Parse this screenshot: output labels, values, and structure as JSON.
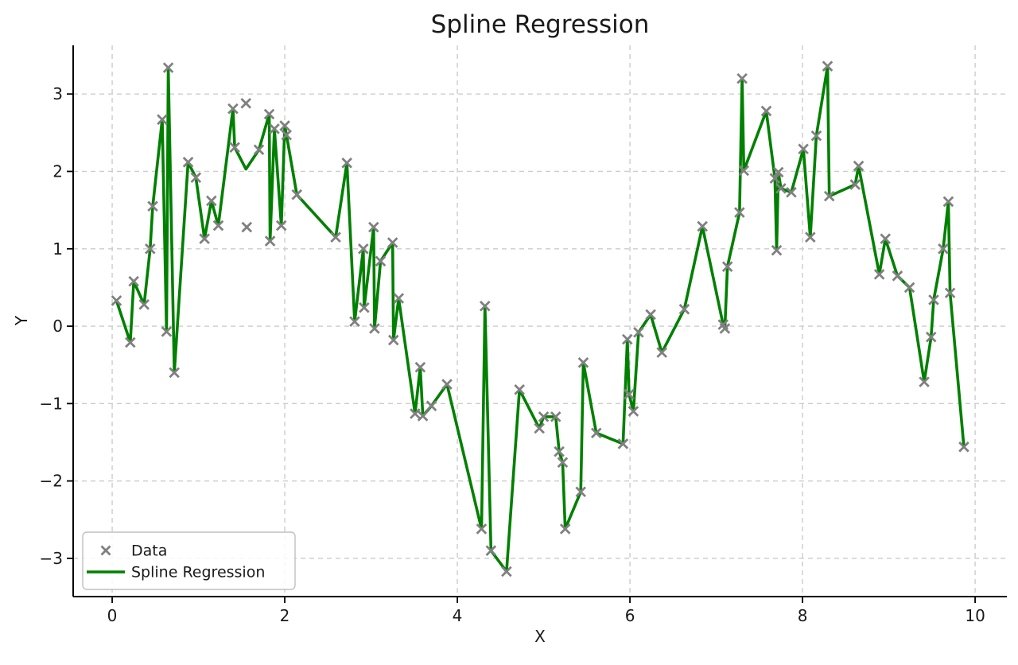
{
  "title": "Spline Regression",
  "axes": {
    "xlabel": "X",
    "ylabel": "Y",
    "x_ticks": [
      0,
      2,
      4,
      6,
      8,
      10
    ],
    "y_ticks": [
      -3,
      -2,
      -1,
      0,
      1,
      2,
      3
    ],
    "xlim": [
      -0.452,
      10.368
    ],
    "ylim": [
      -3.494,
      3.629
    ],
    "grid": true
  },
  "legend": {
    "position": "lower-left",
    "entries": [
      {
        "label": "Data",
        "type": "marker"
      },
      {
        "label": "Spline Regression",
        "type": "line"
      }
    ]
  },
  "colors": {
    "line": "#008000",
    "marker": "#808080",
    "grid": "#cccccc",
    "text": "#1a1a1a",
    "spine": "#000000",
    "legend_border": "#c0c0c0"
  },
  "chart_data": {
    "type": "scatter",
    "title": "Spline Regression",
    "xlabel": "X",
    "ylabel": "Y",
    "xlim": [
      -0.452,
      10.368
    ],
    "ylim": [
      -3.494,
      3.629
    ],
    "grid": true,
    "legend_position": "lower left",
    "series": [
      {
        "name": "Data",
        "type": "scatter",
        "marker": "x",
        "color": "#808080",
        "points": [
          [
            0.05,
            0.33
          ],
          [
            0.21,
            -0.21
          ],
          [
            0.25,
            0.58
          ],
          [
            0.37,
            0.28
          ],
          [
            0.44,
            1.0
          ],
          [
            0.47,
            1.55
          ],
          [
            0.58,
            2.67
          ],
          [
            0.63,
            -0.07
          ],
          [
            0.65,
            3.34
          ],
          [
            0.72,
            -0.6
          ],
          [
            0.88,
            2.12
          ],
          [
            0.97,
            1.92
          ],
          [
            1.07,
            1.13
          ],
          [
            1.15,
            1.62
          ],
          [
            1.23,
            1.3
          ],
          [
            1.4,
            2.81
          ],
          [
            1.42,
            2.31
          ],
          [
            1.55,
            2.88
          ],
          [
            1.56,
            1.28
          ],
          [
            1.7,
            2.28
          ],
          [
            1.82,
            2.74
          ],
          [
            1.83,
            1.1
          ],
          [
            1.88,
            2.55
          ],
          [
            1.96,
            1.3
          ],
          [
            2.0,
            2.59
          ],
          [
            2.02,
            2.47
          ],
          [
            2.14,
            1.7
          ],
          [
            2.59,
            1.15
          ],
          [
            2.72,
            2.11
          ],
          [
            2.81,
            0.06
          ],
          [
            2.91,
            1.0
          ],
          [
            2.92,
            0.24
          ],
          [
            3.03,
            1.28
          ],
          [
            3.04,
            -0.03
          ],
          [
            3.11,
            0.84
          ],
          [
            3.25,
            1.08
          ],
          [
            3.26,
            -0.18
          ],
          [
            3.32,
            0.36
          ],
          [
            3.51,
            -1.13
          ],
          [
            3.57,
            -0.53
          ],
          [
            3.6,
            -1.16
          ],
          [
            3.7,
            -1.03
          ],
          [
            3.88,
            -0.75
          ],
          [
            4.28,
            -2.62
          ],
          [
            4.32,
            0.26
          ],
          [
            4.39,
            -2.9
          ],
          [
            4.57,
            -3.17
          ],
          [
            4.72,
            -0.82
          ],
          [
            4.95,
            -1.32
          ],
          [
            5.0,
            -1.17
          ],
          [
            5.14,
            -1.17
          ],
          [
            5.18,
            -1.62
          ],
          [
            5.22,
            -1.76
          ],
          [
            5.25,
            -2.62
          ],
          [
            5.43,
            -2.14
          ],
          [
            5.46,
            -0.47
          ],
          [
            5.61,
            -1.38
          ],
          [
            5.92,
            -1.52
          ],
          [
            5.97,
            -0.17
          ],
          [
            5.99,
            -0.88
          ],
          [
            6.04,
            -1.1
          ],
          [
            6.1,
            -0.08
          ],
          [
            6.24,
            0.15
          ],
          [
            6.37,
            -0.34
          ],
          [
            6.63,
            0.22
          ],
          [
            6.84,
            1.29
          ],
          [
            7.08,
            0.02
          ],
          [
            7.1,
            -0.03
          ],
          [
            7.13,
            0.77
          ],
          [
            7.27,
            1.47
          ],
          [
            7.3,
            3.2
          ],
          [
            7.32,
            2.01
          ],
          [
            7.58,
            2.78
          ],
          [
            7.68,
            1.91
          ],
          [
            7.7,
            0.98
          ],
          [
            7.72,
            1.99
          ],
          [
            7.75,
            1.78
          ],
          [
            7.87,
            1.73
          ],
          [
            8.01,
            2.29
          ],
          [
            8.09,
            1.15
          ],
          [
            8.16,
            2.46
          ],
          [
            8.29,
            3.36
          ],
          [
            8.31,
            1.68
          ],
          [
            8.61,
            1.83
          ],
          [
            8.65,
            2.07
          ],
          [
            8.89,
            0.67
          ],
          [
            8.96,
            1.13
          ],
          [
            9.1,
            0.65
          ],
          [
            9.24,
            0.5
          ],
          [
            9.41,
            -0.72
          ],
          [
            9.49,
            -0.14
          ],
          [
            9.52,
            0.34
          ],
          [
            9.63,
            1.0
          ],
          [
            9.69,
            1.61
          ],
          [
            9.71,
            0.43
          ],
          [
            9.87,
            -1.56
          ]
        ]
      },
      {
        "name": "Spline Regression",
        "type": "line",
        "color": "#008000",
        "points": [
          [
            0.05,
            0.33
          ],
          [
            0.21,
            -0.21
          ],
          [
            0.25,
            0.58
          ],
          [
            0.37,
            0.28
          ],
          [
            0.44,
            1.0
          ],
          [
            0.47,
            1.55
          ],
          [
            0.58,
            2.67
          ],
          [
            0.63,
            -0.07
          ],
          [
            0.65,
            3.34
          ],
          [
            0.72,
            -0.6
          ],
          [
            0.88,
            2.12
          ],
          [
            0.97,
            1.92
          ],
          [
            1.07,
            1.13
          ],
          [
            1.15,
            1.62
          ],
          [
            1.23,
            1.3
          ],
          [
            1.4,
            2.81
          ],
          [
            1.42,
            2.31
          ],
          [
            1.55,
            2.03
          ],
          [
            1.7,
            2.28
          ],
          [
            1.82,
            2.74
          ],
          [
            1.83,
            1.1
          ],
          [
            1.88,
            2.55
          ],
          [
            1.96,
            1.3
          ],
          [
            2.0,
            2.59
          ],
          [
            2.02,
            2.47
          ],
          [
            2.14,
            1.7
          ],
          [
            2.59,
            1.15
          ],
          [
            2.72,
            2.11
          ],
          [
            2.81,
            0.06
          ],
          [
            2.91,
            1.0
          ],
          [
            2.92,
            0.24
          ],
          [
            3.03,
            1.28
          ],
          [
            3.04,
            -0.03
          ],
          [
            3.11,
            0.84
          ],
          [
            3.25,
            1.08
          ],
          [
            3.26,
            -0.18
          ],
          [
            3.32,
            0.36
          ],
          [
            3.51,
            -1.13
          ],
          [
            3.57,
            -0.53
          ],
          [
            3.6,
            -1.16
          ],
          [
            3.7,
            -1.03
          ],
          [
            3.88,
            -0.75
          ],
          [
            4.28,
            -2.62
          ],
          [
            4.32,
            0.26
          ],
          [
            4.39,
            -2.9
          ],
          [
            4.57,
            -3.17
          ],
          [
            4.72,
            -0.82
          ],
          [
            4.95,
            -1.32
          ],
          [
            5.0,
            -1.17
          ],
          [
            5.14,
            -1.17
          ],
          [
            5.18,
            -1.62
          ],
          [
            5.22,
            -1.76
          ],
          [
            5.25,
            -2.62
          ],
          [
            5.43,
            -2.14
          ],
          [
            5.46,
            -0.47
          ],
          [
            5.61,
            -1.38
          ],
          [
            5.92,
            -1.52
          ],
          [
            5.97,
            -0.17
          ],
          [
            5.99,
            -0.88
          ],
          [
            6.04,
            -1.1
          ],
          [
            6.1,
            -0.08
          ],
          [
            6.24,
            0.15
          ],
          [
            6.37,
            -0.34
          ],
          [
            6.63,
            0.22
          ],
          [
            6.84,
            1.29
          ],
          [
            7.08,
            0.02
          ],
          [
            7.1,
            -0.03
          ],
          [
            7.13,
            0.77
          ],
          [
            7.27,
            1.47
          ],
          [
            7.3,
            3.2
          ],
          [
            7.32,
            2.01
          ],
          [
            7.58,
            2.78
          ],
          [
            7.68,
            1.91
          ],
          [
            7.7,
            0.98
          ],
          [
            7.72,
            1.99
          ],
          [
            7.75,
            1.78
          ],
          [
            7.87,
            1.73
          ],
          [
            8.01,
            2.29
          ],
          [
            8.09,
            1.15
          ],
          [
            8.16,
            2.46
          ],
          [
            8.29,
            3.36
          ],
          [
            8.31,
            1.68
          ],
          [
            8.61,
            1.83
          ],
          [
            8.65,
            2.07
          ],
          [
            8.89,
            0.67
          ],
          [
            8.96,
            1.13
          ],
          [
            9.1,
            0.65
          ],
          [
            9.24,
            0.5
          ],
          [
            9.41,
            -0.72
          ],
          [
            9.49,
            -0.14
          ],
          [
            9.52,
            0.34
          ],
          [
            9.63,
            1.0
          ],
          [
            9.69,
            1.61
          ],
          [
            9.71,
            0.43
          ],
          [
            9.87,
            -1.56
          ]
        ]
      }
    ]
  }
}
